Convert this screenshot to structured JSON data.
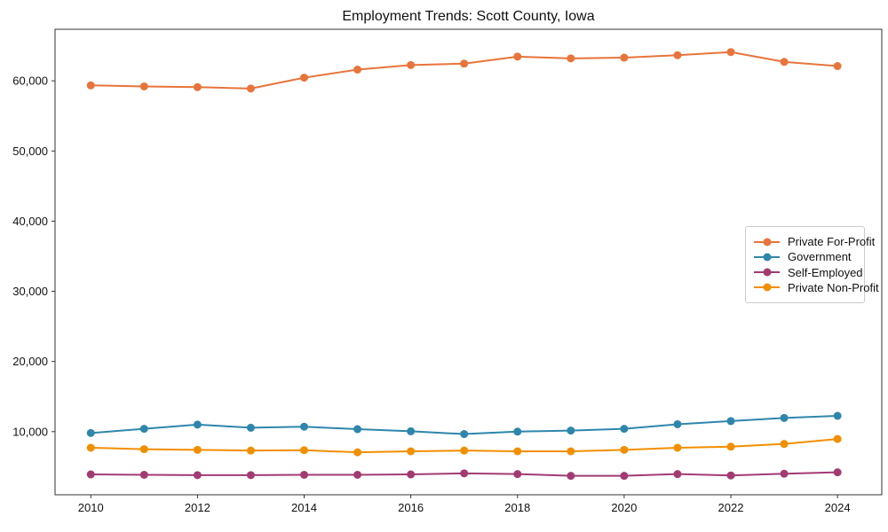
{
  "chart_data": {
    "type": "line",
    "title": "Employment Trends: Scott County, Iowa",
    "x": [
      2010,
      2011,
      2012,
      2013,
      2014,
      2015,
      2016,
      2017,
      2018,
      2019,
      2020,
      2021,
      2022,
      2023,
      2024
    ],
    "series": [
      {
        "name": "Private For-Profit",
        "color": "#E8743B",
        "values": [
          59350,
          59200,
          59100,
          58900,
          60450,
          61600,
          62250,
          62450,
          63450,
          63200,
          63300,
          63650,
          64100,
          62700,
          62100
        ]
      },
      {
        "name": "Government",
        "color": "#2E86AB",
        "values": [
          9800,
          10400,
          11000,
          10550,
          10700,
          10350,
          10050,
          9650,
          10000,
          10150,
          10400,
          11050,
          11500,
          11950,
          12250
        ]
      },
      {
        "name": "Self-Employed",
        "color": "#A23B72",
        "values": [
          3900,
          3850,
          3800,
          3800,
          3850,
          3850,
          3900,
          4050,
          3950,
          3700,
          3700,
          3950,
          3750,
          4000,
          4200
        ]
      },
      {
        "name": "Private Non-Profit",
        "color": "#F18F01",
        "values": [
          7700,
          7500,
          7400,
          7300,
          7350,
          7050,
          7200,
          7300,
          7200,
          7200,
          7400,
          7700,
          7850,
          8250,
          8950
        ]
      }
    ],
    "xlim": [
      2009.33,
      2024.83
    ],
    "ylim": [
      1000,
      67350
    ],
    "xticks": {
      "values": [
        2010,
        2012,
        2014,
        2016,
        2018,
        2020,
        2022,
        2024
      ],
      "labels": [
        "2010",
        "2012",
        "2014",
        "2016",
        "2018",
        "2020",
        "2022",
        "2024"
      ]
    },
    "yticks": {
      "values": [
        10000,
        20000,
        30000,
        40000,
        50000,
        60000
      ],
      "labels": [
        "10,000",
        "20,000",
        "30,000",
        "40,000",
        "50,000",
        "60,000"
      ]
    },
    "xlabel": "",
    "ylabel": "",
    "grid": false,
    "marker": "circle",
    "legend_position": "right",
    "axis_color": "#333333",
    "background_color": "#ffffff"
  }
}
